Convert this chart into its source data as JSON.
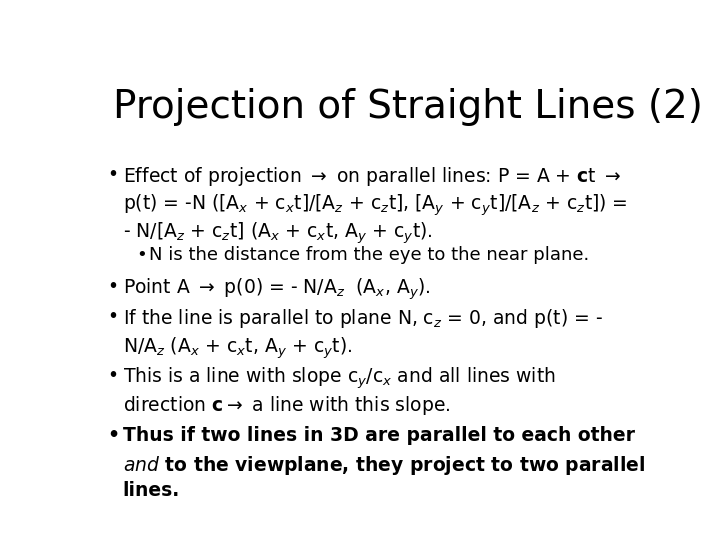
{
  "title": "Projection of Straight Lines (2)",
  "background_color": "#ffffff",
  "text_color": "#000000",
  "title_fontsize": 28,
  "body_fontsize": 13.5,
  "sub_fontsize": 13.0
}
